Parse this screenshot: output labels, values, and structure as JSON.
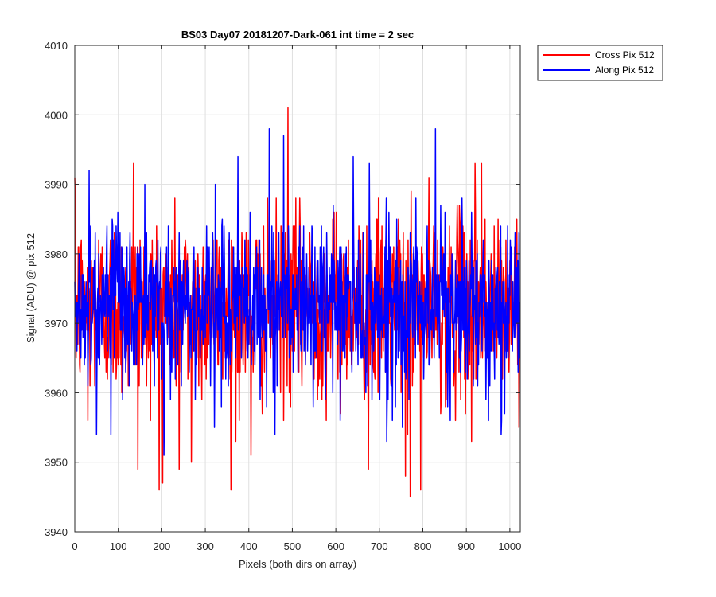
{
  "chart_data": {
    "type": "line",
    "title": "BS03 Day07 20181207-Dark-061 int time = 2 sec",
    "xlabel": "Pixels (both dirs on array)",
    "ylabel": "Signal (ADU) @ pix 512",
    "xlim": [
      0,
      1024
    ],
    "ylim": [
      3940,
      4010
    ],
    "xticks": [
      0,
      100,
      200,
      300,
      400,
      500,
      600,
      700,
      800,
      900,
      1000
    ],
    "yticks": [
      3940,
      3950,
      3960,
      3970,
      3980,
      3990,
      4000,
      4010
    ],
    "grid": true,
    "legend_position": "top-right, outside plot area",
    "series": [
      {
        "name": "Cross Pix 512",
        "color": "#ff0000",
        "points_per_series": 1024,
        "mean": 3972.5,
        "std": 6.5,
        "extremes": [
          {
            "x": 1,
            "y": 3988
          },
          {
            "x": 30,
            "y": 3956
          },
          {
            "x": 135,
            "y": 3993
          },
          {
            "x": 145,
            "y": 3949
          },
          {
            "x": 202,
            "y": 3947
          },
          {
            "x": 240,
            "y": 3949
          },
          {
            "x": 268,
            "y": 3950
          },
          {
            "x": 370,
            "y": 3953
          },
          {
            "x": 405,
            "y": 3951
          },
          {
            "x": 490,
            "y": 4001
          },
          {
            "x": 675,
            "y": 3949
          },
          {
            "x": 760,
            "y": 3948
          },
          {
            "x": 771,
            "y": 3945
          },
          {
            "x": 795,
            "y": 3946
          },
          {
            "x": 912,
            "y": 3953
          },
          {
            "x": 920,
            "y": 3993
          },
          {
            "x": 935,
            "y": 3993
          }
        ]
      },
      {
        "name": "Along Pix 512",
        "color": "#0000ff",
        "points_per_series": 1024,
        "mean": 3972.5,
        "std": 5.8,
        "extremes": [
          {
            "x": 33,
            "y": 3992
          },
          {
            "x": 50,
            "y": 3954
          },
          {
            "x": 83,
            "y": 3954
          },
          {
            "x": 205,
            "y": 3951
          },
          {
            "x": 321,
            "y": 3955
          },
          {
            "x": 375,
            "y": 3994
          },
          {
            "x": 447,
            "y": 3998
          },
          {
            "x": 460,
            "y": 3954
          },
          {
            "x": 480,
            "y": 3997
          },
          {
            "x": 548,
            "y": 3958
          },
          {
            "x": 610,
            "y": 3956
          },
          {
            "x": 640,
            "y": 3994
          },
          {
            "x": 683,
            "y": 3959
          },
          {
            "x": 730,
            "y": 3956
          },
          {
            "x": 753,
            "y": 3955
          },
          {
            "x": 829,
            "y": 3998
          },
          {
            "x": 857,
            "y": 3958
          },
          {
            "x": 980,
            "y": 3954
          }
        ]
      }
    ]
  }
}
